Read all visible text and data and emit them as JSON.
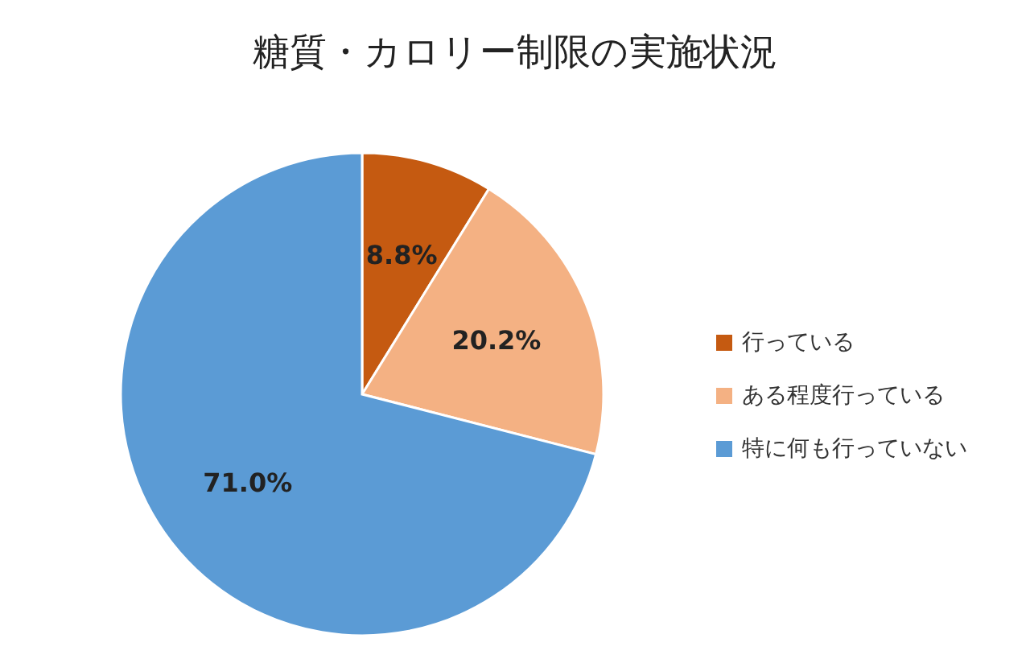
{
  "chart_data": {
    "type": "pie",
    "title": "糖質・カロリー制限の実施状況",
    "categories": [
      "行っている",
      "ある程度行っている",
      "特に何も行っていない"
    ],
    "values": [
      8.8,
      20.2,
      71.0
    ],
    "colors": [
      "#c55a11",
      "#f4b183",
      "#5b9bd5"
    ],
    "value_labels": [
      "8.8%",
      "20.2%",
      "71.0%"
    ],
    "legend": "right"
  }
}
